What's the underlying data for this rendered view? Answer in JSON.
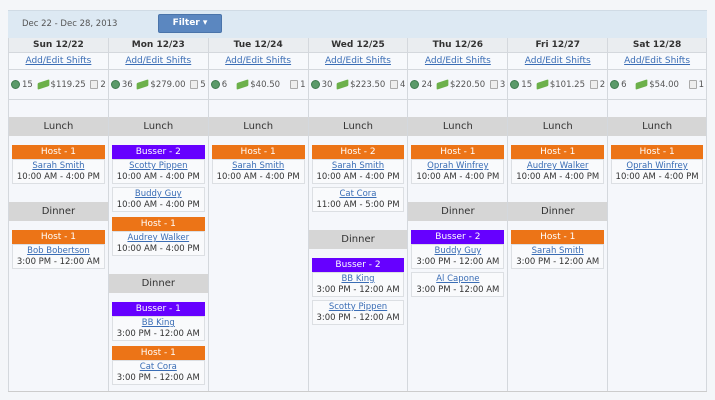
{
  "header": {
    "date_range": "Dec 22 - Dec 28, 2013",
    "filter_label": "Filter ▾"
  },
  "add_edit_label": "Add/Edit Shifts",
  "colors": {
    "host": "#ec7417",
    "busser": "#6600ff",
    "filter": "#5b87c0"
  },
  "icons": {
    "hours": "clock-icon",
    "cost": "money-icon",
    "shifts": "copy-icon"
  },
  "days": [
    {
      "label": "Sun 12/22",
      "hours": "15",
      "cost": "$119.25",
      "count": "2",
      "sections": [
        {
          "name": "Lunch",
          "roles": [
            {
              "role": "Host - 1",
              "type": "host",
              "people": [
                {
                  "name": "Sarah Smith",
                  "time": "10:00 AM - 4:00 PM"
                }
              ]
            }
          ]
        },
        {
          "name": "Dinner",
          "roles": [
            {
              "role": "Host - 1",
              "type": "host",
              "people": [
                {
                  "name": "Bob Bobertson",
                  "time": "3:00 PM - 12:00 AM"
                }
              ]
            }
          ]
        }
      ]
    },
    {
      "label": "Mon 12/23",
      "hours": "36",
      "cost": "$279.00",
      "count": "5",
      "sections": [
        {
          "name": "Lunch",
          "roles": [
            {
              "role": "Busser - 2",
              "type": "busser",
              "people": [
                {
                  "name": "Scotty Pippen",
                  "time": "10:00 AM - 4:00 PM"
                },
                {
                  "name": "Buddy Guy",
                  "time": "10:00 AM - 4:00 PM"
                }
              ]
            },
            {
              "role": "Host - 1",
              "type": "host",
              "people": [
                {
                  "name": "Audrey Walker",
                  "time": "10:00 AM - 4:00 PM"
                }
              ]
            }
          ]
        },
        {
          "name": "Dinner",
          "roles": [
            {
              "role": "Busser - 1",
              "type": "busser",
              "people": [
                {
                  "name": "BB King",
                  "time": "3:00 PM - 12:00 AM"
                }
              ]
            },
            {
              "role": "Host - 1",
              "type": "host",
              "people": [
                {
                  "name": "Cat Cora",
                  "time": "3:00 PM - 12:00 AM"
                }
              ]
            }
          ]
        }
      ]
    },
    {
      "label": "Tue 12/24",
      "hours": "6",
      "cost": "$40.50",
      "count": "1",
      "sections": [
        {
          "name": "Lunch",
          "roles": [
            {
              "role": "Host - 1",
              "type": "host",
              "people": [
                {
                  "name": "Sarah Smith",
                  "time": "10:00 AM - 4:00 PM"
                }
              ]
            }
          ]
        }
      ]
    },
    {
      "label": "Wed 12/25",
      "hours": "30",
      "cost": "$223.50",
      "count": "4",
      "sections": [
        {
          "name": "Lunch",
          "roles": [
            {
              "role": "Host - 2",
              "type": "host",
              "people": [
                {
                  "name": "Sarah Smith",
                  "time": "10:00 AM - 4:00 PM"
                },
                {
                  "name": "Cat Cora",
                  "time": "11:00 AM - 5:00 PM"
                }
              ]
            }
          ]
        },
        {
          "name": "Dinner",
          "roles": [
            {
              "role": "Busser - 2",
              "type": "busser",
              "people": [
                {
                  "name": "BB King",
                  "time": "3:00 PM - 12:00 AM"
                },
                {
                  "name": "Scotty Pippen",
                  "time": "3:00 PM - 12:00 AM"
                }
              ]
            }
          ]
        }
      ]
    },
    {
      "label": "Thu 12/26",
      "hours": "24",
      "cost": "$220.50",
      "count": "3",
      "sections": [
        {
          "name": "Lunch",
          "roles": [
            {
              "role": "Host - 1",
              "type": "host",
              "people": [
                {
                  "name": "Oprah Winfrey",
                  "time": "10:00 AM - 4:00 PM"
                }
              ]
            }
          ]
        },
        {
          "name": "Dinner",
          "roles": [
            {
              "role": "Busser - 2",
              "type": "busser",
              "people": [
                {
                  "name": "Buddy Guy",
                  "time": "3:00 PM - 12:00 AM"
                },
                {
                  "name": "Al Capone",
                  "time": "3:00 PM - 12:00 AM"
                }
              ]
            }
          ]
        }
      ]
    },
    {
      "label": "Fri 12/27",
      "hours": "15",
      "cost": "$101.25",
      "count": "2",
      "sections": [
        {
          "name": "Lunch",
          "roles": [
            {
              "role": "Host - 1",
              "type": "host",
              "people": [
                {
                  "name": "Audrey Walker",
                  "time": "10:00 AM - 4:00 PM"
                }
              ]
            }
          ]
        },
        {
          "name": "Dinner",
          "roles": [
            {
              "role": "Host - 1",
              "type": "host",
              "people": [
                {
                  "name": "Sarah Smith",
                  "time": "3:00 PM - 12:00 AM"
                }
              ]
            }
          ]
        }
      ]
    },
    {
      "label": "Sat 12/28",
      "hours": "6",
      "cost": "$54.00",
      "count": "1",
      "sections": [
        {
          "name": "Lunch",
          "roles": [
            {
              "role": "Host - 1",
              "type": "host",
              "people": [
                {
                  "name": "Oprah Winfrey",
                  "time": "10:00 AM - 4:00 PM"
                }
              ]
            }
          ]
        }
      ]
    }
  ]
}
